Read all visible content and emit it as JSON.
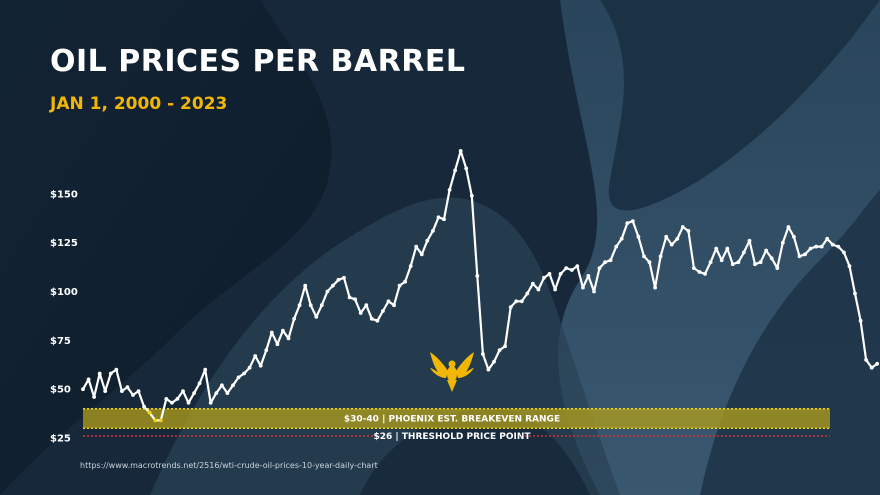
{
  "slide": {
    "title": "OIL PRICES PER BARREL",
    "subtitle": "JAN 1, 2000 - 2023",
    "source": "https://www.macrotrends.net/2516/wti-crude-oil-prices-10-year-daily-chart"
  },
  "colors": {
    "background": "#16283a",
    "title": "#ffffff",
    "subtitle": "#f2b705",
    "line": "#ffffff",
    "below_breakeven": "#f2d21b",
    "band_fill": "#b9a317",
    "band_border": "#f2d21b",
    "threshold_line": "#d23232",
    "logo": "#f2b705"
  },
  "logo": {
    "icon": "phoenix-icon"
  },
  "chart_data": {
    "type": "line",
    "title": "OIL PRICES PER BARREL",
    "subtitle": "JAN 1, 2000 - 2023",
    "xlabel": "",
    "ylabel": "",
    "x_range": [
      "2000-01",
      "2023-12"
    ],
    "ylim": [
      25,
      175
    ],
    "y_ticks": [
      {
        "value": 25,
        "label": "$25"
      },
      {
        "value": 50,
        "label": "$50"
      },
      {
        "value": 75,
        "label": "$75"
      },
      {
        "value": 100,
        "label": "$100"
      },
      {
        "value": 125,
        "label": "$125"
      },
      {
        "value": 150,
        "label": "$150"
      }
    ],
    "grid": false,
    "legend": "none",
    "series": [
      {
        "points": [
          [
            "2000-01",
            50
          ],
          [
            "2000-03",
            55
          ],
          [
            "2000-05",
            46
          ],
          [
            "2000-07",
            58
          ],
          [
            "2000-09",
            49
          ],
          [
            "2000-11",
            58
          ],
          [
            "2001-01",
            60
          ],
          [
            "2001-03",
            49
          ],
          [
            "2001-05",
            51
          ],
          [
            "2001-07",
            47
          ],
          [
            "2001-09",
            49
          ],
          [
            "2001-11",
            41
          ],
          [
            "2002-01",
            38
          ],
          [
            "2002-03",
            34
          ],
          [
            "2002-05",
            34
          ],
          [
            "2002-07",
            45
          ],
          [
            "2002-09",
            43
          ],
          [
            "2002-11",
            45
          ],
          [
            "2003-01",
            49
          ],
          [
            "2003-03",
            43
          ],
          [
            "2003-05",
            48
          ],
          [
            "2003-07",
            53
          ],
          [
            "2003-09",
            60
          ],
          [
            "2003-11",
            43
          ],
          [
            "2004-01",
            48
          ],
          [
            "2004-03",
            52
          ],
          [
            "2004-05",
            48
          ],
          [
            "2004-07",
            52
          ],
          [
            "2004-09",
            56
          ],
          [
            "2004-11",
            58
          ],
          [
            "2005-01",
            61
          ],
          [
            "2005-03",
            67
          ],
          [
            "2005-05",
            62
          ],
          [
            "2005-07",
            70
          ],
          [
            "2005-09",
            79
          ],
          [
            "2005-11",
            73
          ],
          [
            "2006-01",
            80
          ],
          [
            "2006-03",
            76
          ],
          [
            "2006-05",
            86
          ],
          [
            "2006-07",
            93
          ],
          [
            "2006-09",
            103
          ],
          [
            "2006-11",
            93
          ],
          [
            "2007-01",
            87
          ],
          [
            "2007-03",
            93
          ],
          [
            "2007-05",
            100
          ],
          [
            "2007-07",
            103
          ],
          [
            "2007-09",
            106
          ],
          [
            "2007-11",
            107
          ],
          [
            "2008-01",
            97
          ],
          [
            "2008-03",
            96
          ],
          [
            "2008-05",
            89
          ],
          [
            "2008-07",
            93
          ],
          [
            "2008-09",
            86
          ],
          [
            "2008-11",
            85
          ],
          [
            "2009-01",
            90
          ],
          [
            "2009-03",
            95
          ],
          [
            "2009-05",
            93
          ],
          [
            "2009-07",
            103
          ],
          [
            "2009-09",
            105
          ],
          [
            "2009-11",
            113
          ],
          [
            "2010-01",
            123
          ],
          [
            "2010-03",
            119
          ],
          [
            "2010-05",
            126
          ],
          [
            "2010-07",
            131
          ],
          [
            "2010-09",
            138
          ],
          [
            "2010-11",
            137
          ],
          [
            "2011-01",
            152
          ],
          [
            "2011-03",
            162
          ],
          [
            "2011-05",
            172
          ],
          [
            "2011-07",
            163
          ],
          [
            "2011-09",
            149
          ],
          [
            "2011-11",
            108
          ],
          [
            "2012-01",
            68
          ],
          [
            "2012-03",
            60
          ],
          [
            "2012-05",
            64
          ],
          [
            "2012-07",
            70
          ],
          [
            "2012-09",
            72
          ],
          [
            "2012-11",
            92
          ],
          [
            "2013-01",
            95
          ],
          [
            "2013-03",
            95
          ],
          [
            "2013-05",
            99
          ],
          [
            "2013-07",
            104
          ],
          [
            "2013-09",
            101
          ],
          [
            "2013-11",
            107
          ],
          [
            "2014-01",
            109
          ],
          [
            "2014-03",
            101
          ],
          [
            "2014-05",
            109
          ],
          [
            "2014-07",
            112
          ],
          [
            "2014-09",
            111
          ],
          [
            "2014-11",
            113
          ],
          [
            "2015-01",
            102
          ],
          [
            "2015-03",
            108
          ],
          [
            "2015-05",
            100
          ],
          [
            "2015-07",
            112
          ],
          [
            "2015-09",
            115
          ],
          [
            "2015-11",
            116
          ],
          [
            "2016-01",
            123
          ],
          [
            "2016-03",
            127
          ],
          [
            "2016-05",
            135
          ],
          [
            "2016-07",
            136
          ],
          [
            "2016-09",
            128
          ],
          [
            "2016-11",
            118
          ],
          [
            "2017-01",
            115
          ],
          [
            "2017-03",
            102
          ],
          [
            "2017-05",
            118
          ],
          [
            "2017-07",
            128
          ],
          [
            "2017-09",
            124
          ],
          [
            "2017-11",
            127
          ],
          [
            "2018-01",
            133
          ],
          [
            "2018-03",
            131
          ],
          [
            "2018-05",
            112
          ],
          [
            "2018-07",
            110
          ],
          [
            "2018-09",
            109
          ],
          [
            "2018-11",
            115
          ],
          [
            "2019-01",
            122
          ],
          [
            "2019-03",
            116
          ],
          [
            "2019-05",
            122
          ],
          [
            "2019-07",
            114
          ],
          [
            "2019-09",
            115
          ],
          [
            "2019-11",
            120
          ],
          [
            "2020-01",
            126
          ],
          [
            "2020-03",
            114
          ],
          [
            "2020-05",
            115
          ],
          [
            "2020-07",
            121
          ],
          [
            "2020-09",
            117
          ],
          [
            "2020-11",
            112
          ],
          [
            "2021-01",
            125
          ],
          [
            "2021-03",
            133
          ],
          [
            "2021-05",
            128
          ],
          [
            "2021-07",
            118
          ],
          [
            "2021-09",
            119
          ],
          [
            "2021-11",
            122
          ],
          [
            "2022-01",
            123
          ],
          [
            "2022-03",
            123
          ],
          [
            "2022-05",
            127
          ],
          [
            "2022-07",
            124
          ],
          [
            "2022-09",
            123
          ],
          [
            "2022-11",
            120
          ],
          [
            "2023-01",
            113
          ],
          [
            "2023-03",
            99
          ],
          [
            "2023-05",
            85
          ],
          [
            "2023-07",
            65
          ],
          [
            "2023-09",
            61
          ],
          [
            "2023-11",
            63
          ]
        ]
      }
    ],
    "annotations": [
      {
        "type": "band",
        "range": [
          30,
          40
        ],
        "label": "$30-40   |   PHOENIX EST. BREAKEVEN RANGE"
      },
      {
        "type": "threshold",
        "value": 26,
        "label": "$26   |  THRESHOLD PRICE POINT"
      }
    ]
  }
}
